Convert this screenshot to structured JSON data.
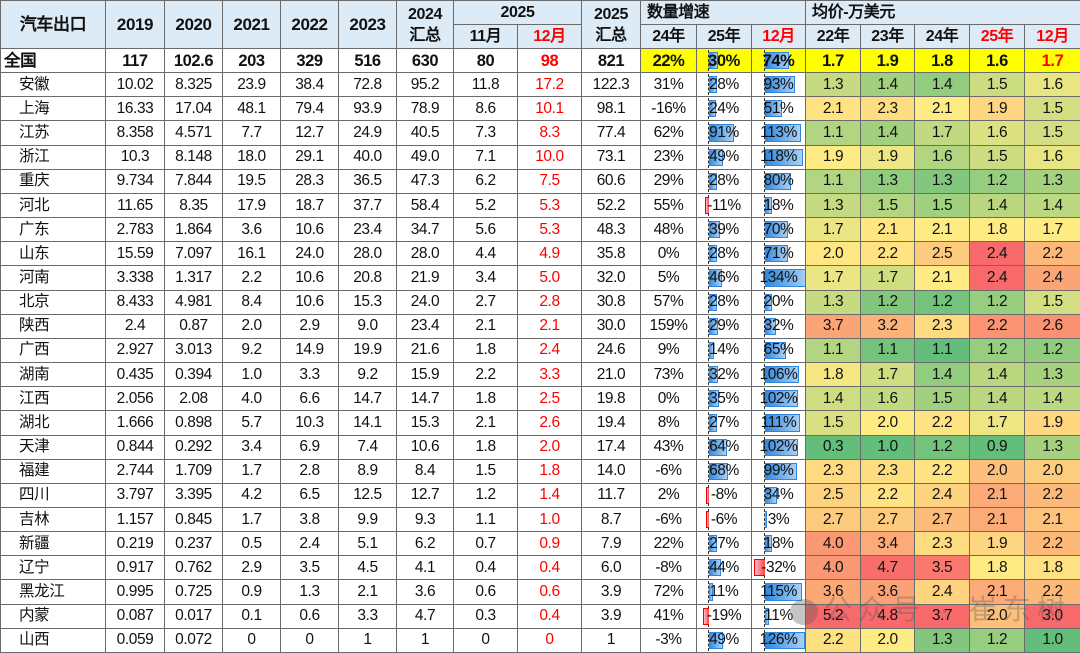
{
  "header": {
    "corner": "汽车出口",
    "years": [
      "2019",
      "2020",
      "2021",
      "2022",
      "2023"
    ],
    "y2024": "2024",
    "total_label": "汇总",
    "y2025": "2025",
    "nov": "11月",
    "dec": "12月",
    "y2025_total": "2025",
    "growth_group": "数量增速",
    "growth_cols": [
      "24年",
      "25年",
      "12月"
    ],
    "price_group": "均价-万美元",
    "price_cols": [
      "22年",
      "23年",
      "24年",
      "25年",
      "12月"
    ]
  },
  "rows": [
    {
      "name": "全国",
      "v": [
        "117",
        "102.6",
        "203",
        "329",
        "516",
        "630",
        "80",
        "98",
        "821"
      ],
      "g": [
        "22%",
        "30%",
        "74%"
      ],
      "p": [
        "1.7",
        "1.9",
        "1.8",
        "1.6",
        "1.7"
      ]
    },
    {
      "name": "安徽",
      "v": [
        "10.02",
        "8.325",
        "23.9",
        "38.4",
        "72.8",
        "95.2",
        "11.8",
        "17.2",
        "122.3"
      ],
      "g": [
        "31%",
        "28%",
        "93%"
      ],
      "p": [
        "1.3",
        "1.4",
        "1.4",
        "1.5",
        "1.6"
      ]
    },
    {
      "name": "上海",
      "v": [
        "16.33",
        "17.04",
        "48.1",
        "79.4",
        "93.9",
        "78.9",
        "8.6",
        "10.1",
        "98.1"
      ],
      "g": [
        "-16%",
        "24%",
        "51%"
      ],
      "p": [
        "2.1",
        "2.3",
        "2.1",
        "1.9",
        "1.5"
      ]
    },
    {
      "name": "江苏",
      "v": [
        "8.358",
        "4.571",
        "7.7",
        "12.7",
        "24.9",
        "40.5",
        "7.3",
        "8.3",
        "77.4"
      ],
      "g": [
        "62%",
        "91%",
        "113%"
      ],
      "p": [
        "1.1",
        "1.4",
        "1.7",
        "1.6",
        "1.5"
      ]
    },
    {
      "name": "浙江",
      "v": [
        "10.3",
        "8.148",
        "18.0",
        "29.1",
        "40.0",
        "49.0",
        "7.1",
        "10.0",
        "73.1"
      ],
      "g": [
        "23%",
        "49%",
        "118%"
      ],
      "p": [
        "1.9",
        "1.9",
        "1.6",
        "1.5",
        "1.6"
      ]
    },
    {
      "name": "重庆",
      "v": [
        "9.734",
        "7.844",
        "19.5",
        "28.3",
        "36.5",
        "47.3",
        "6.2",
        "7.5",
        "60.6"
      ],
      "g": [
        "29%",
        "28%",
        "80%"
      ],
      "p": [
        "1.1",
        "1.3",
        "1.3",
        "1.2",
        "1.3"
      ]
    },
    {
      "name": "河北",
      "v": [
        "11.65",
        "8.35",
        "17.9",
        "18.7",
        "37.7",
        "58.4",
        "5.2",
        "5.3",
        "52.2"
      ],
      "g": [
        "55%",
        "-11%",
        "18%"
      ],
      "p": [
        "1.3",
        "1.5",
        "1.5",
        "1.4",
        "1.4"
      ]
    },
    {
      "name": "广东",
      "v": [
        "2.783",
        "1.864",
        "3.6",
        "10.6",
        "23.4",
        "34.7",
        "5.6",
        "5.3",
        "48.3"
      ],
      "g": [
        "48%",
        "39%",
        "70%"
      ],
      "p": [
        "1.7",
        "2.1",
        "2.1",
        "1.8",
        "1.7"
      ]
    },
    {
      "name": "山东",
      "v": [
        "15.59",
        "7.097",
        "16.1",
        "24.0",
        "28.0",
        "28.0",
        "4.4",
        "4.9",
        "35.8"
      ],
      "g": [
        "0%",
        "28%",
        "71%"
      ],
      "p": [
        "2.0",
        "2.2",
        "2.5",
        "2.4",
        "2.2"
      ]
    },
    {
      "name": "河南",
      "v": [
        "3.338",
        "1.317",
        "2.2",
        "10.6",
        "20.8",
        "21.9",
        "3.4",
        "5.0",
        "32.0"
      ],
      "g": [
        "5%",
        "46%",
        "134%"
      ],
      "p": [
        "1.7",
        "1.7",
        "2.1",
        "2.4",
        "2.4"
      ]
    },
    {
      "name": "北京",
      "v": [
        "8.433",
        "4.981",
        "8.4",
        "10.6",
        "15.3",
        "24.0",
        "2.7",
        "2.8",
        "30.8"
      ],
      "g": [
        "57%",
        "28%",
        "20%"
      ],
      "p": [
        "1.3",
        "1.2",
        "1.2",
        "1.2",
        "1.5"
      ]
    },
    {
      "name": "陕西",
      "v": [
        "2.4",
        "0.87",
        "2.0",
        "2.9",
        "9.0",
        "23.4",
        "2.1",
        "2.1",
        "30.0"
      ],
      "g": [
        "159%",
        "29%",
        "32%"
      ],
      "p": [
        "3.7",
        "3.2",
        "2.3",
        "2.2",
        "2.6"
      ]
    },
    {
      "name": "广西",
      "v": [
        "2.927",
        "3.013",
        "9.2",
        "14.9",
        "19.9",
        "21.6",
        "1.8",
        "2.4",
        "24.6"
      ],
      "g": [
        "9%",
        "14%",
        "65%"
      ],
      "p": [
        "1.1",
        "1.1",
        "1.1",
        "1.2",
        "1.2"
      ]
    },
    {
      "name": "湖南",
      "v": [
        "0.435",
        "0.394",
        "1.0",
        "3.3",
        "9.2",
        "15.9",
        "2.2",
        "3.3",
        "21.0"
      ],
      "g": [
        "73%",
        "32%",
        "106%"
      ],
      "p": [
        "1.8",
        "1.7",
        "1.4",
        "1.4",
        "1.3"
      ]
    },
    {
      "name": "江西",
      "v": [
        "2.056",
        "2.08",
        "4.0",
        "6.6",
        "14.7",
        "14.7",
        "1.8",
        "2.5",
        "19.8"
      ],
      "g": [
        "0%",
        "35%",
        "102%"
      ],
      "p": [
        "1.4",
        "1.6",
        "1.5",
        "1.4",
        "1.4"
      ]
    },
    {
      "name": "湖北",
      "v": [
        "1.666",
        "0.898",
        "5.7",
        "10.3",
        "14.1",
        "15.3",
        "2.1",
        "2.6",
        "19.4"
      ],
      "g": [
        "8%",
        "27%",
        "111%"
      ],
      "p": [
        "1.5",
        "2.0",
        "2.2",
        "1.7",
        "1.9"
      ]
    },
    {
      "name": "天津",
      "v": [
        "0.844",
        "0.292",
        "3.4",
        "6.9",
        "7.4",
        "10.6",
        "1.8",
        "2.0",
        "17.4"
      ],
      "g": [
        "43%",
        "64%",
        "102%"
      ],
      "p": [
        "0.3",
        "1.0",
        "1.2",
        "0.9",
        "1.3"
      ]
    },
    {
      "name": "福建",
      "v": [
        "2.744",
        "1.709",
        "1.7",
        "2.8",
        "8.9",
        "8.4",
        "1.5",
        "1.8",
        "14.0"
      ],
      "g": [
        "-6%",
        "68%",
        "99%"
      ],
      "p": [
        "2.3",
        "2.3",
        "2.2",
        "2.0",
        "2.0"
      ]
    },
    {
      "name": "四川",
      "v": [
        "3.797",
        "3.395",
        "4.2",
        "6.5",
        "12.5",
        "12.7",
        "1.2",
        "1.4",
        "11.7"
      ],
      "g": [
        "2%",
        "-8%",
        "34%"
      ],
      "p": [
        "2.5",
        "2.2",
        "2.4",
        "2.1",
        "2.2"
      ]
    },
    {
      "name": "吉林",
      "v": [
        "1.157",
        "0.845",
        "1.7",
        "3.8",
        "9.9",
        "9.3",
        "1.1",
        "1.0",
        "8.7"
      ],
      "g": [
        "-6%",
        "-6%",
        "3%"
      ],
      "p": [
        "2.7",
        "2.7",
        "2.7",
        "2.1",
        "2.1"
      ]
    },
    {
      "name": "新疆",
      "v": [
        "0.219",
        "0.237",
        "0.5",
        "2.4",
        "5.1",
        "6.2",
        "0.7",
        "0.9",
        "7.9"
      ],
      "g": [
        "22%",
        "27%",
        "18%"
      ],
      "p": [
        "4.0",
        "3.4",
        "2.3",
        "1.9",
        "2.2"
      ]
    },
    {
      "name": "辽宁",
      "v": [
        "0.917",
        "0.762",
        "2.9",
        "3.5",
        "4.5",
        "4.1",
        "0.4",
        "0.4",
        "6.0"
      ],
      "g": [
        "-8%",
        "44%",
        "-32%"
      ],
      "p": [
        "4.0",
        "4.7",
        "3.5",
        "1.8",
        "1.8"
      ]
    },
    {
      "name": "黑龙江",
      "v": [
        "0.995",
        "0.725",
        "0.9",
        "1.3",
        "2.1",
        "3.6",
        "0.6",
        "0.6",
        "3.9"
      ],
      "g": [
        "72%",
        "11%",
        "115%"
      ],
      "p": [
        "3.6",
        "3.6",
        "2.4",
        "2.1",
        "2.2"
      ]
    },
    {
      "name": "内蒙",
      "v": [
        "0.087",
        "0.017",
        "0.1",
        "0.6",
        "3.3",
        "4.7",
        "0.3",
        "0.4",
        "3.9"
      ],
      "g": [
        "41%",
        "-19%",
        "11%"
      ],
      "p": [
        "5.2",
        "4.8",
        "3.7",
        "2.0",
        "3.0"
      ]
    },
    {
      "name": "山西",
      "v": [
        "0.059",
        "0.072",
        "0",
        "0",
        "1",
        "1",
        "0",
        "0",
        "1"
      ],
      "g": [
        "-3%",
        "49%",
        "126%"
      ],
      "p": [
        "2.2",
        "2.0",
        "1.3",
        "1.2",
        "1.0"
      ]
    }
  ],
  "colors": {
    "green": "#63BE7B",
    "yellow": "#FFEB84",
    "red": "#F8696B",
    "highlight": "#FFFF00",
    "accent_red": "#FF0000",
    "header_bg": "#DDEBF7"
  },
  "watermark": "公众号 · 崔东树"
}
